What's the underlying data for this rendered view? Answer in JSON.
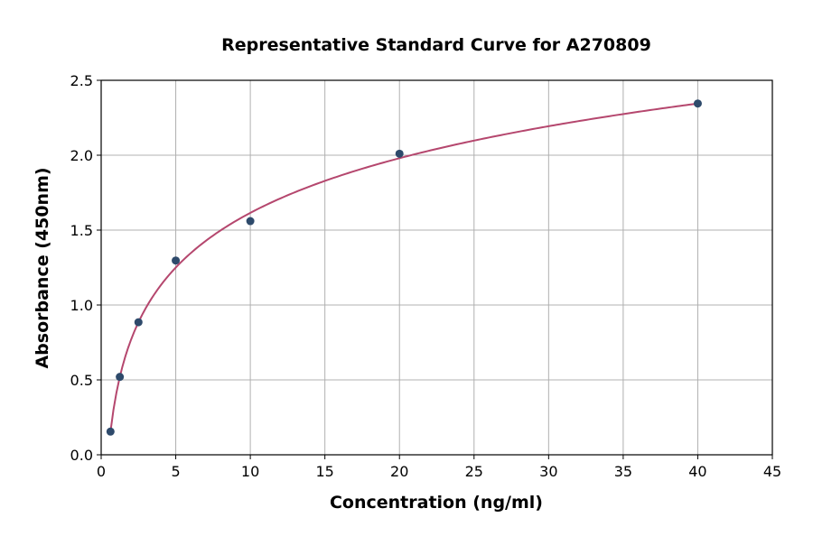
{
  "chart_data": {
    "type": "scatter",
    "title": "Representative Standard Curve for A270809",
    "xlabel": "Concentration (ng/ml)",
    "ylabel": "Absorbance (450nm)",
    "xlim": [
      0,
      45
    ],
    "ylim": [
      0,
      2.5
    ],
    "xticks": [
      "0",
      "5",
      "10",
      "15",
      "20",
      "25",
      "30",
      "35",
      "40",
      "45"
    ],
    "yticks": [
      "0.0",
      "0.5",
      "1.0",
      "1.5",
      "2.0",
      "2.5"
    ],
    "grid": true,
    "points": [
      {
        "x": 0.625,
        "y": 0.155
      },
      {
        "x": 1.25,
        "y": 0.52
      },
      {
        "x": 2.5,
        "y": 0.885
      },
      {
        "x": 5,
        "y": 1.297
      },
      {
        "x": 10,
        "y": 1.56
      },
      {
        "x": 20,
        "y": 2.01
      },
      {
        "x": 40,
        "y": 2.345
      }
    ],
    "colors": {
      "points": "#2e4a6b",
      "curve": "#b5476e"
    }
  }
}
